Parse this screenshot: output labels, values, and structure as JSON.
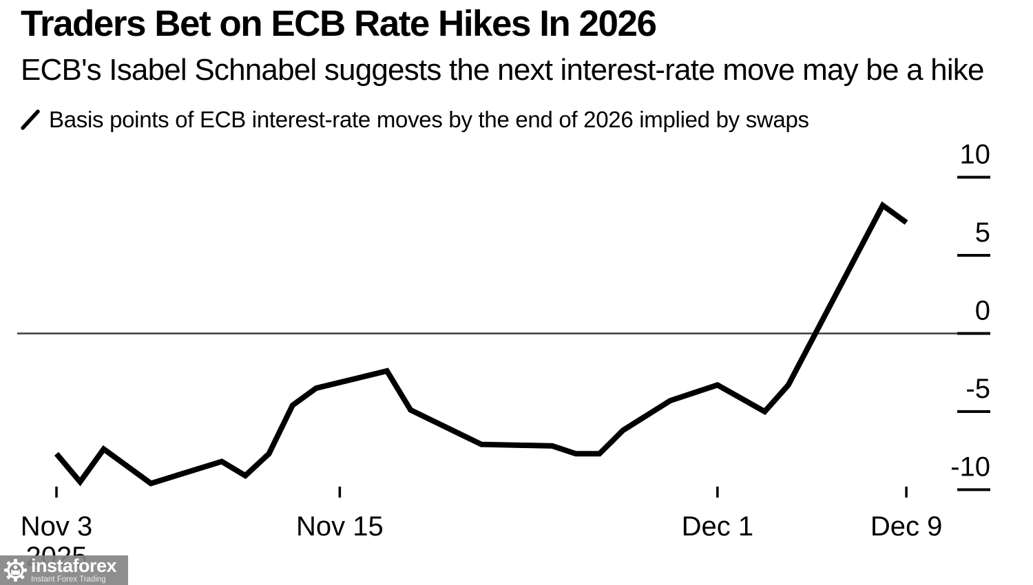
{
  "page": {
    "background": "#ffffff",
    "text_color": "#000000"
  },
  "header": {
    "title": "Traders Bet on ECB Rate Hikes In 2026",
    "subtitle": "ECB's Isabel Schnabel suggests the next interest-rate move may be a hike"
  },
  "legend": {
    "key_icon": "diagonal-line-swatch",
    "label": "Basis points of ECB interest-rate moves by the end of 2026 implied by swaps",
    "series_color": "#000000"
  },
  "watermark": {
    "brand": "instaforex",
    "tagline": "Instant Forex Trading",
    "icon": "gear-person-icon",
    "background": "#858585",
    "text_color": "#ffffff"
  },
  "chart_data": {
    "type": "line",
    "title": "Traders Bet on ECB Rate Hikes In 2026",
    "subtitle": "ECB's Isabel Schnabel suggests the next interest-rate move may be a hike",
    "ylabel": "Basis points",
    "unit": "bp",
    "grid": false,
    "zero_line": true,
    "legend_position": "top-left",
    "y_axis_side": "right",
    "y_ticks": [
      10,
      5,
      0,
      -5,
      -10
    ],
    "ylim": [
      -11.5,
      11
    ],
    "x_axis_note": "t = calendar days since Nov 3, 2025",
    "x_ticks": [
      {
        "label": "Nov 3",
        "sublabel": "2025",
        "t": 0
      },
      {
        "label": "Nov 15",
        "t": 12
      },
      {
        "label": "Dec 1",
        "t": 28
      },
      {
        "label": "Dec 9",
        "t": 36
      }
    ],
    "series": [
      {
        "name": "Basis points of ECB interest-rate moves by the end of 2026 implied by swaps",
        "color": "#000000",
        "points": [
          {
            "date": "Nov 3",
            "t": 0,
            "value": -7.7
          },
          {
            "date": "Nov 4",
            "t": 1,
            "value": -9.5
          },
          {
            "date": "Nov 5",
            "t": 2,
            "value": -7.4
          },
          {
            "date": "Nov 7",
            "t": 4,
            "value": -9.6
          },
          {
            "date": "Nov 10",
            "t": 7,
            "value": -8.2
          },
          {
            "date": "Nov 11",
            "t": 8,
            "value": -9.1
          },
          {
            "date": "Nov 12",
            "t": 9,
            "value": -7.7
          },
          {
            "date": "Nov 13",
            "t": 10,
            "value": -4.6
          },
          {
            "date": "Nov 14",
            "t": 11,
            "value": -3.5
          },
          {
            "date": "Nov 17",
            "t": 14,
            "value": -2.4
          },
          {
            "date": "Nov 18",
            "t": 15,
            "value": -4.9
          },
          {
            "date": "Nov 21",
            "t": 18,
            "value": -7.1
          },
          {
            "date": "Nov 24",
            "t": 21,
            "value": -7.2
          },
          {
            "date": "Nov 25",
            "t": 22,
            "value": -7.7
          },
          {
            "date": "Nov 26",
            "t": 23,
            "value": -7.7
          },
          {
            "date": "Nov 27",
            "t": 24,
            "value": -6.2
          },
          {
            "date": "Nov 29",
            "t": 26,
            "value": -4.3
          },
          {
            "date": "Dec 1",
            "t": 28,
            "value": -3.3
          },
          {
            "date": "Dec 3",
            "t": 30,
            "value": -5.0
          },
          {
            "date": "Dec 4",
            "t": 31,
            "value": -3.3
          },
          {
            "date": "Dec 8",
            "t": 35,
            "value": 8.2
          },
          {
            "date": "Dec 9",
            "t": 36,
            "value": 7.1
          }
        ]
      }
    ]
  }
}
